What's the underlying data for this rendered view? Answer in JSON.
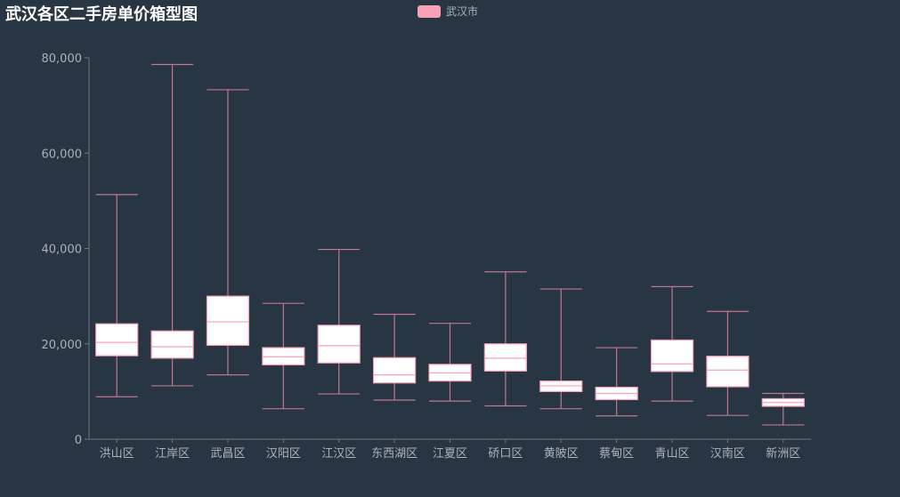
{
  "chart_data": {
    "type": "boxplot",
    "title": "武汉各区二手房单价箱型图",
    "legend": [
      "武汉市"
    ],
    "series_name": "武汉市",
    "box_fill": "#ffffff",
    "box_stroke": "#f7a1b6",
    "whisker_color": "#c07890",
    "categories": [
      "洪山区",
      "江岸区",
      "武昌区",
      "汉阳区",
      "江汉区",
      "东西湖区",
      "江夏区",
      "硚口区",
      "黄陂区",
      "蔡甸区",
      "青山区",
      "汉南区",
      "新洲区"
    ],
    "boxes": [
      {
        "min": 8900,
        "q1": 17500,
        "median": 20300,
        "q3": 24200,
        "max": 51300
      },
      {
        "min": 11200,
        "q1": 17000,
        "median": 19400,
        "q3": 22700,
        "max": 78600
      },
      {
        "min": 13500,
        "q1": 19700,
        "median": 24600,
        "q3": 30000,
        "max": 73300
      },
      {
        "min": 6400,
        "q1": 15600,
        "median": 17300,
        "q3": 19200,
        "max": 28500
      },
      {
        "min": 9500,
        "q1": 16000,
        "median": 19600,
        "q3": 23900,
        "max": 39800
      },
      {
        "min": 8200,
        "q1": 11800,
        "median": 13500,
        "q3": 17100,
        "max": 26200
      },
      {
        "min": 8000,
        "q1": 12200,
        "median": 13900,
        "q3": 15700,
        "max": 24300
      },
      {
        "min": 7000,
        "q1": 14300,
        "median": 17000,
        "q3": 20000,
        "max": 35100
      },
      {
        "min": 6400,
        "q1": 10000,
        "median": 11200,
        "q3": 12200,
        "max": 31500
      },
      {
        "min": 4900,
        "q1": 8300,
        "median": 9600,
        "q3": 10900,
        "max": 19200
      },
      {
        "min": 8000,
        "q1": 14200,
        "median": 15800,
        "q3": 20800,
        "max": 32000
      },
      {
        "min": 5000,
        "q1": 11000,
        "median": 14500,
        "q3": 17400,
        "max": 26800
      },
      {
        "min": 3000,
        "q1": 6900,
        "median": 7700,
        "q3": 8500,
        "max": 9600
      }
    ],
    "yticks": [
      0,
      20000,
      40000,
      60000,
      80000
    ],
    "ytick_labels": [
      "0",
      "20,000",
      "40,000",
      "60,000",
      "80,000"
    ],
    "ylim": [
      0,
      80000
    ]
  }
}
